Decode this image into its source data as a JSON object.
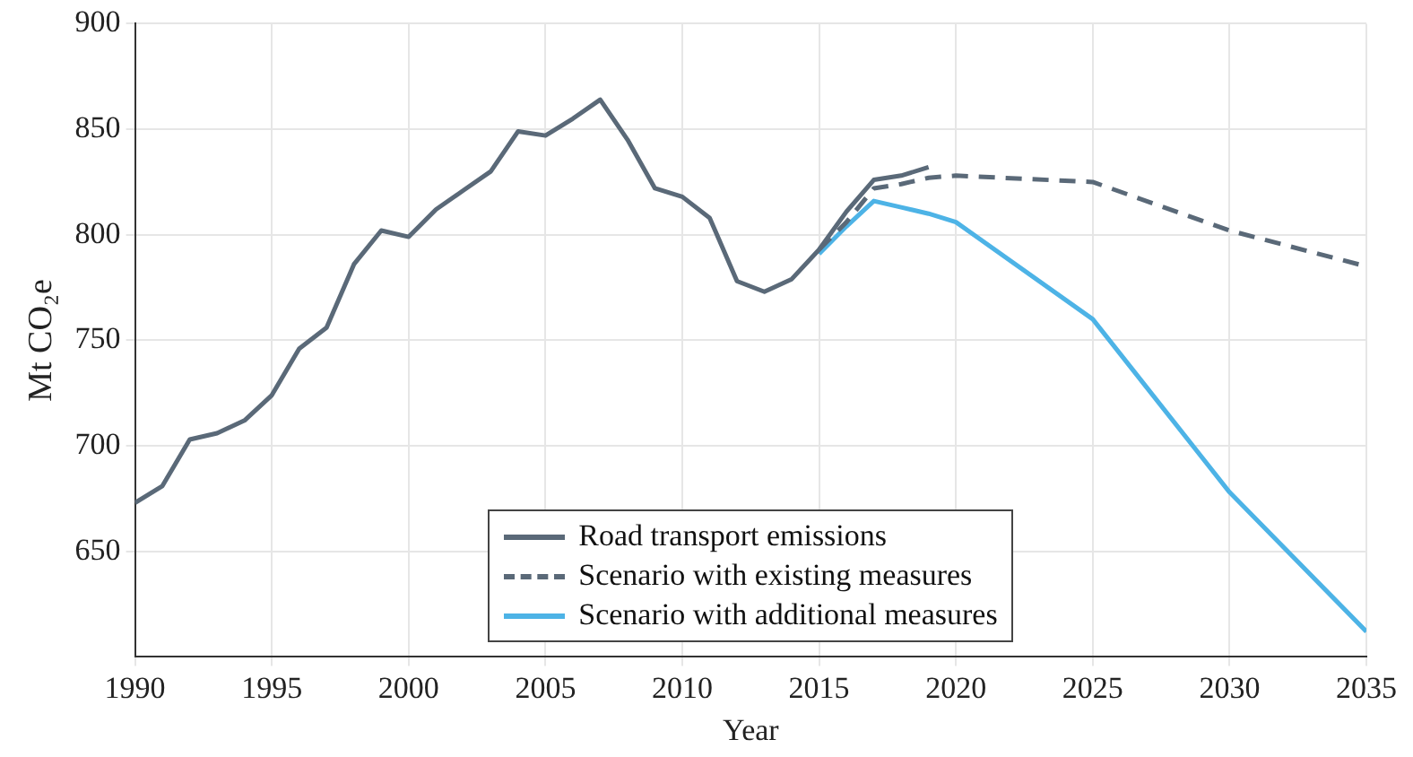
{
  "chart_data": {
    "type": "line",
    "xlabel": "Year",
    "ylabel": "Mt CO₂e",
    "xlim": [
      1990,
      2035
    ],
    "xticks": [
      1990,
      1995,
      2000,
      2005,
      2010,
      2015,
      2020,
      2025,
      2030,
      2035
    ],
    "ylim": [
      600,
      900
    ],
    "yticks": [
      650,
      700,
      750,
      800,
      850,
      900
    ],
    "grid": true,
    "legend": "bottom",
    "series": [
      {
        "name": "Road transport emissions",
        "color": "#5a6978",
        "line_style": "solid",
        "x": [
          1990,
          1991,
          1992,
          1993,
          1994,
          1995,
          1996,
          1997,
          1998,
          1999,
          2000,
          2001,
          2002,
          2003,
          2004,
          2005,
          2006,
          2007,
          2008,
          2009,
          2010,
          2011,
          2012,
          2013,
          2014,
          2015,
          2016,
          2017,
          2018,
          2019
        ],
        "values": [
          673,
          681,
          703,
          706,
          712,
          724,
          746,
          756,
          786,
          802,
          799,
          812,
          821,
          830,
          849,
          847,
          855,
          864,
          845,
          822,
          818,
          808,
          778,
          773,
          779,
          793,
          811,
          826,
          828,
          832
        ]
      },
      {
        "name": "Scenario with existing measures",
        "color": "#5a6978",
        "line_style": "dashed",
        "x": [
          2015,
          2016,
          2017,
          2018,
          2019,
          2020,
          2025,
          2030,
          2035
        ],
        "values": [
          793,
          806,
          822,
          824,
          827,
          828,
          825,
          802,
          785
        ]
      },
      {
        "name": "Scenario with additional measures",
        "color": "#4db3e6",
        "line_style": "solid",
        "x": [
          2015,
          2016,
          2017,
          2018,
          2019,
          2020,
          2025,
          2030,
          2035
        ],
        "values": [
          791,
          804,
          816,
          813,
          810,
          806,
          760,
          678,
          612
        ]
      }
    ]
  }
}
